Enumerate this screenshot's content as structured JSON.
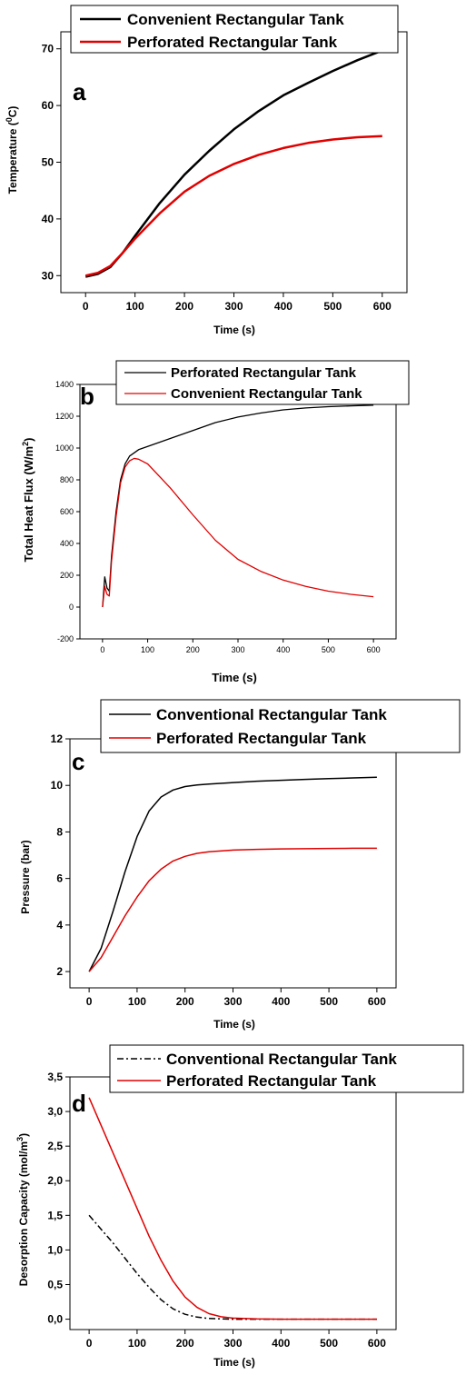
{
  "chart_data": [
    {
      "type": "line",
      "panel_label": "a",
      "xlabel": "Time (s)",
      "ylabel": "Temperature (",
      "ylabel_sup": "0",
      "ylabel_end": "C)",
      "xlim": [
        -50,
        650
      ],
      "ylim": [
        27,
        73
      ],
      "xticks": [
        0,
        100,
        200,
        300,
        400,
        500,
        600
      ],
      "yticks": [
        30,
        40,
        50,
        60,
        70
      ],
      "legend_position": "top",
      "series": [
        {
          "name": "Convenient Rectangular Tank",
          "color": "#000000",
          "x": [
            0,
            25,
            50,
            75,
            100,
            150,
            200,
            250,
            300,
            350,
            400,
            450,
            500,
            550,
            600
          ],
          "y": [
            29.8,
            30.3,
            31.5,
            34.0,
            37.0,
            42.8,
            47.8,
            52.0,
            55.8,
            59.0,
            61.8,
            64.0,
            66.1,
            68.0,
            69.7
          ]
        },
        {
          "name": "Perforated Rectangular Tank",
          "color": "#e00000",
          "x": [
            0,
            25,
            50,
            75,
            100,
            150,
            200,
            250,
            300,
            350,
            400,
            450,
            500,
            550,
            600
          ],
          "y": [
            30.0,
            30.5,
            31.7,
            34.0,
            36.5,
            41.0,
            44.8,
            47.6,
            49.7,
            51.3,
            52.5,
            53.4,
            54.0,
            54.4,
            54.6
          ]
        }
      ]
    },
    {
      "type": "line",
      "panel_label": "b",
      "xlabel": "Time (s)",
      "ylabel": "Total Heat Flux (W/m",
      "ylabel_sup": "2",
      "ylabel_end": ")",
      "xlim": [
        -50,
        650
      ],
      "ylim": [
        -200,
        1400
      ],
      "xticks": [
        0,
        100,
        200,
        300,
        400,
        500,
        600
      ],
      "yticks": [
        -200,
        0,
        200,
        400,
        600,
        800,
        1000,
        1200,
        1400
      ],
      "legend_position": "top",
      "series": [
        {
          "name": "Perforated Rectangular Tank",
          "color": "#000000",
          "x": [
            0,
            5,
            10,
            15,
            20,
            30,
            40,
            50,
            60,
            70,
            80,
            100,
            150,
            200,
            250,
            300,
            350,
            400,
            450,
            500,
            550,
            600
          ],
          "y": [
            0,
            190,
            120,
            100,
            320,
            600,
            800,
            900,
            950,
            970,
            990,
            1010,
            1060,
            1110,
            1160,
            1195,
            1220,
            1240,
            1252,
            1260,
            1265,
            1270
          ]
        },
        {
          "name": "Convenient Rectangular Tank",
          "color": "#e00000",
          "x": [
            0,
            5,
            10,
            15,
            20,
            30,
            40,
            50,
            60,
            70,
            80,
            100,
            150,
            200,
            250,
            300,
            350,
            400,
            450,
            500,
            550,
            600
          ],
          "y": [
            0,
            130,
            80,
            70,
            290,
            570,
            780,
            880,
            920,
            935,
            930,
            900,
            750,
            580,
            420,
            300,
            225,
            170,
            130,
            100,
            80,
            65
          ]
        }
      ]
    },
    {
      "type": "line",
      "panel_label": "c",
      "xlabel": "Time (s)",
      "ylabel": "Pressure (bar)",
      "xlim": [
        -40,
        640
      ],
      "ylim": [
        1.3,
        12
      ],
      "xticks": [
        0,
        100,
        200,
        300,
        400,
        500,
        600
      ],
      "yticks": [
        2,
        4,
        6,
        8,
        10,
        12
      ],
      "legend_position": "top",
      "series": [
        {
          "name": "Conventional Rectangular Tank",
          "color": "#000000",
          "x": [
            0,
            25,
            50,
            75,
            100,
            125,
            150,
            175,
            200,
            225,
            250,
            300,
            350,
            400,
            450,
            500,
            550,
            600
          ],
          "y": [
            2.0,
            3.0,
            4.6,
            6.3,
            7.8,
            8.9,
            9.5,
            9.8,
            9.95,
            10.02,
            10.06,
            10.12,
            10.18,
            10.22,
            10.26,
            10.29,
            10.32,
            10.35
          ]
        },
        {
          "name": "Perforated Rectangular Tank",
          "color": "#e00000",
          "x": [
            0,
            25,
            50,
            75,
            100,
            125,
            150,
            175,
            200,
            225,
            250,
            300,
            350,
            400,
            450,
            500,
            550,
            600
          ],
          "y": [
            2.0,
            2.6,
            3.5,
            4.4,
            5.2,
            5.9,
            6.4,
            6.75,
            6.95,
            7.08,
            7.15,
            7.22,
            7.25,
            7.27,
            7.28,
            7.29,
            7.3,
            7.3
          ]
        }
      ]
    },
    {
      "type": "line",
      "panel_label": "d",
      "xlabel": "Time (s)",
      "ylabel": "Desorption Capacity (mol/m",
      "ylabel_sup": "3",
      "ylabel_end": ")",
      "xlim": [
        -40,
        640
      ],
      "ylim": [
        -0.15,
        3.5
      ],
      "xticks": [
        0,
        100,
        200,
        300,
        400,
        500,
        600
      ],
      "xtick_labels": [
        "0",
        "100",
        "200",
        "300",
        "400",
        "500",
        "600"
      ],
      "yticks": [
        0.0,
        0.5,
        1.0,
        1.5,
        2.0,
        2.5,
        3.0,
        3.5
      ],
      "ytick_labels": [
        "0,0",
        "0,5",
        "1,0",
        "1,5",
        "2,0",
        "2,5",
        "3,0",
        "3,5"
      ],
      "legend_position": "top",
      "series": [
        {
          "name": "Conventional Rectangular Tank",
          "color": "#000000",
          "dash": "dashdot",
          "x": [
            0,
            25,
            50,
            75,
            100,
            125,
            150,
            175,
            200,
            225,
            250,
            275,
            300,
            350,
            400,
            500,
            600
          ],
          "y": [
            1.5,
            1.3,
            1.1,
            0.88,
            0.66,
            0.46,
            0.28,
            0.15,
            0.07,
            0.03,
            0.01,
            0.005,
            0.0,
            0.0,
            0.0,
            0.0,
            0.0
          ]
        },
        {
          "name": "Perforated Rectangular Tank",
          "color": "#e00000",
          "x": [
            0,
            25,
            50,
            75,
            100,
            125,
            150,
            175,
            200,
            225,
            250,
            275,
            300,
            350,
            400,
            500,
            600
          ],
          "y": [
            3.2,
            2.8,
            2.4,
            2.0,
            1.6,
            1.2,
            0.85,
            0.55,
            0.32,
            0.17,
            0.08,
            0.035,
            0.015,
            0.003,
            0.0,
            0.0,
            0.0
          ]
        }
      ]
    }
  ]
}
